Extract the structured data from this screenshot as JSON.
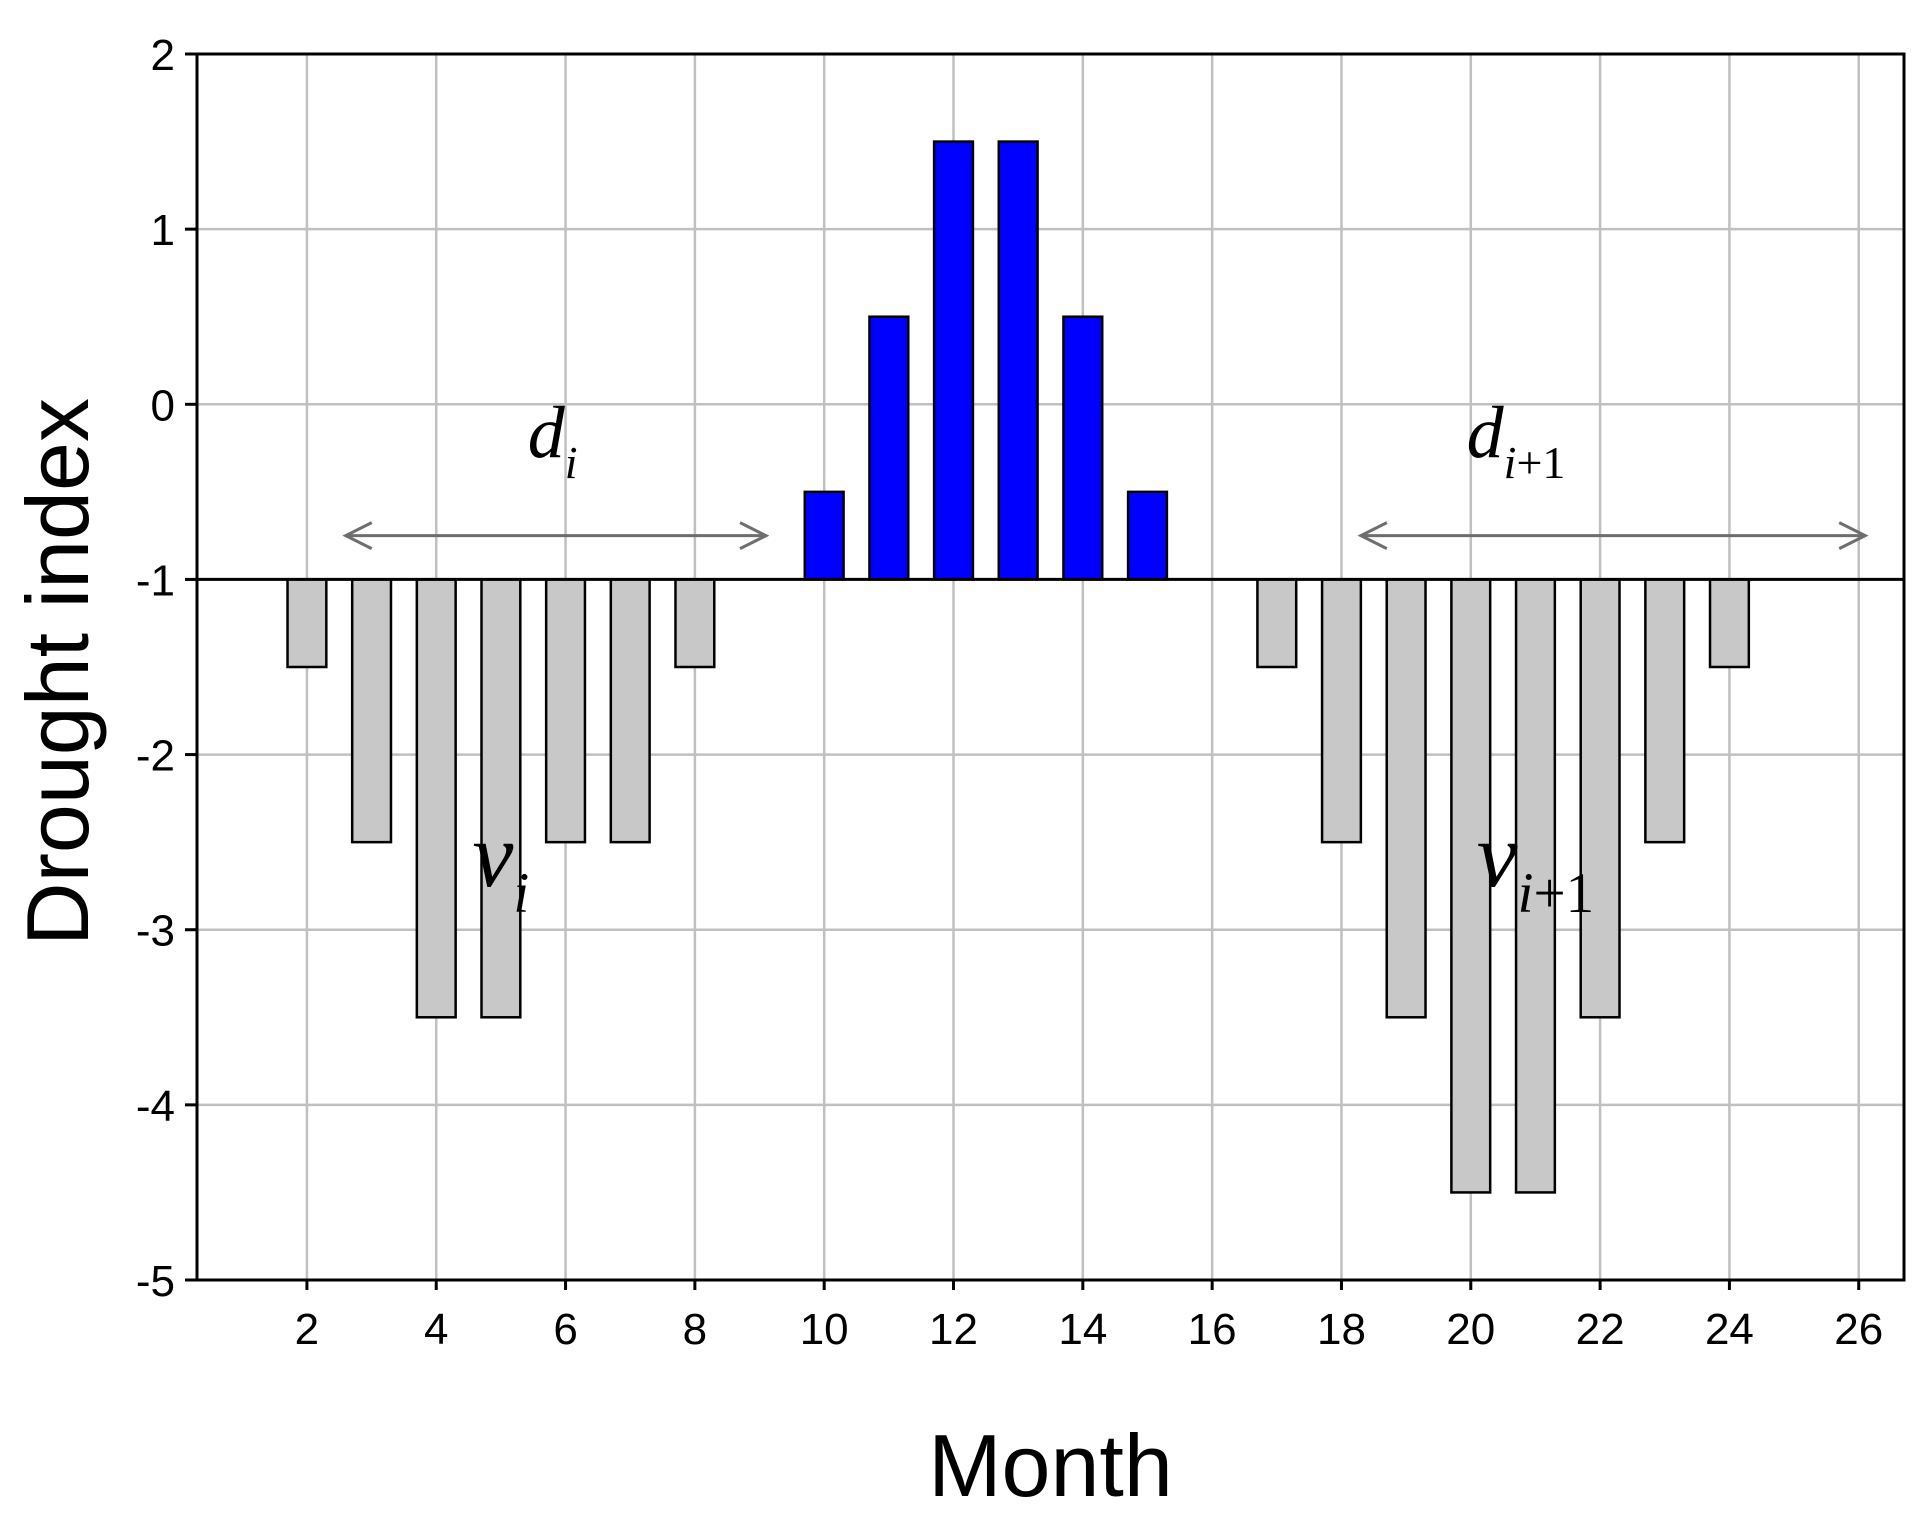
{
  "chart_data": {
    "type": "bar",
    "xlabel": "Month",
    "ylabel": "Drought index",
    "xlim": [
      0.3,
      26.7
    ],
    "ylim": [
      -5,
      2
    ],
    "x_ticks": [
      2,
      4,
      6,
      8,
      10,
      12,
      14,
      16,
      18,
      20,
      22,
      24,
      26
    ],
    "y_ticks": [
      2,
      1,
      0,
      -1,
      -2,
      -3,
      -4,
      -5
    ],
    "grid": true,
    "baseline": -1,
    "colors": {
      "positive": "#0000ff",
      "negative": "#c8c8c8",
      "grid": "#c0c0c0",
      "arrow": "#6e6e6e"
    },
    "series": [
      {
        "x": [
          2,
          3,
          4,
          5,
          6,
          7,
          8,
          10,
          11,
          12,
          13,
          14,
          15,
          17,
          18,
          19,
          20,
          21,
          22,
          23,
          24
        ],
        "values": [
          -1.5,
          -2.5,
          -3.5,
          -3.5,
          -2.5,
          -2.5,
          -1.5,
          -0.5,
          0.5,
          1.5,
          1.5,
          0.5,
          -0.5,
          -1.5,
          -2.5,
          -3.5,
          -4.5,
          -4.5,
          -3.5,
          -2.5,
          -1.5
        ]
      }
    ],
    "annotations": [
      {
        "name": "d-i",
        "base": "d",
        "sub": "i",
        "x": 5.8,
        "y": -0.3,
        "size": 74
      },
      {
        "name": "d-i-plus-1",
        "base": "d",
        "sub": "i+1",
        "x": 20.7,
        "y": -0.3,
        "size": 74
      },
      {
        "name": "v-i",
        "base": "v",
        "sub": "i",
        "x": 5.0,
        "y": -2.75,
        "size": 92
      },
      {
        "name": "v-i-plus-1",
        "base": "v",
        "sub": "i+1",
        "x": 21.0,
        "y": -2.75,
        "size": 92
      }
    ],
    "arrows": [
      {
        "name": "duration-arrow-i",
        "x1": 2.6,
        "x2": 9.1,
        "y": -0.75
      },
      {
        "name": "duration-arrow-i-plus-1",
        "x1": 18.3,
        "x2": 26.1,
        "y": -0.75
      }
    ]
  }
}
